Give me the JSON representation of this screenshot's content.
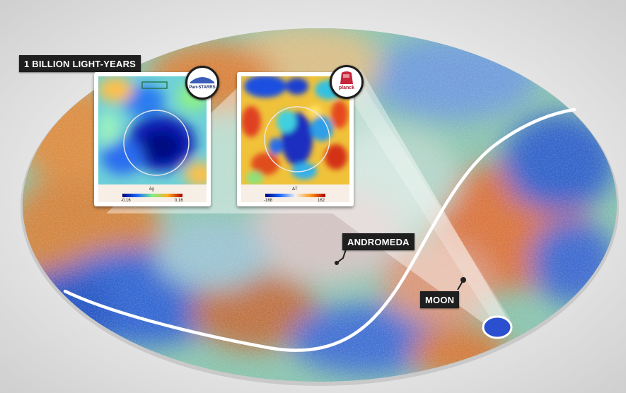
{
  "labels": {
    "scale": "1 BILLION LIGHT-YEARS",
    "andromeda": "ANDROMEDA",
    "moon": "MOON"
  },
  "insets": {
    "left": {
      "badge": "Pan-STARRS",
      "colorbar_symbol": "δg",
      "colorbar_min": "-0.16",
      "colorbar_max": "0.16"
    },
    "right": {
      "badge": "planck",
      "colorbar_symbol": "ΔT",
      "colorbar_min": "-168",
      "colorbar_max": "162"
    }
  },
  "colors": {
    "callout_bg": "#1f1f1f",
    "ecliptic": "#ffffff",
    "cmb_cold": "#1f4fd1",
    "cmb_mid": "#79c7a8",
    "cmb_warm": "#e27a2c"
  }
}
